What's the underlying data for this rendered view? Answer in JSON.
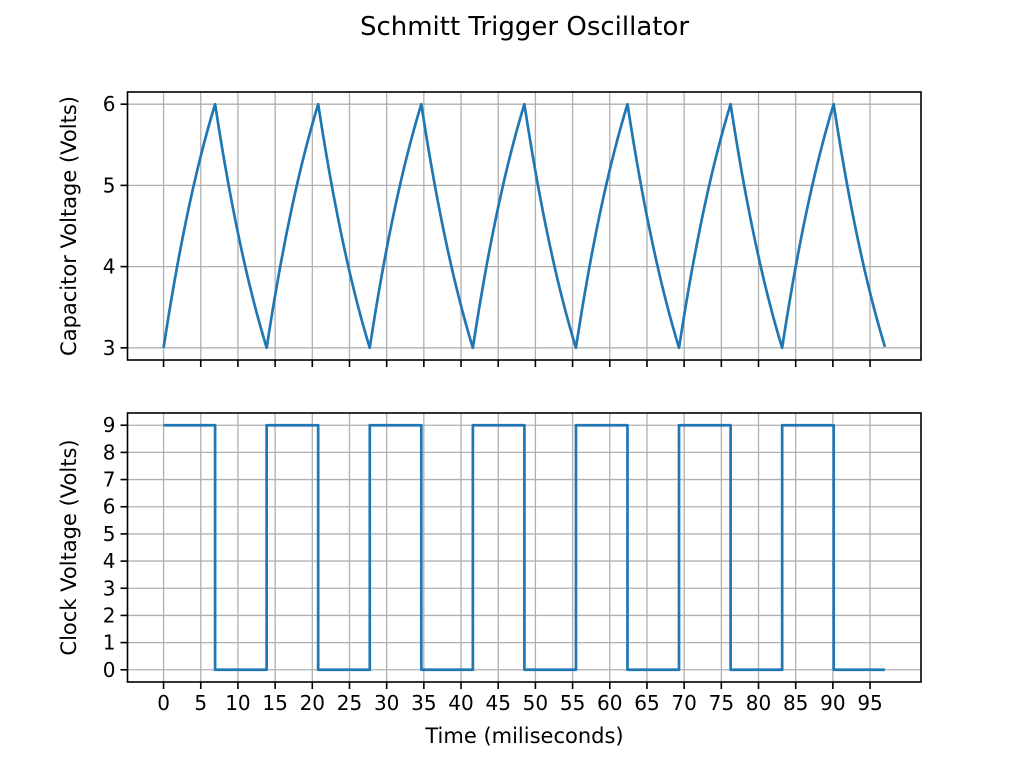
{
  "figure": {
    "title": "Schmitt Trigger Oscillator",
    "background_color": "#ffffff",
    "text_color": "#000000"
  },
  "x_axis": {
    "label": "Time (miliseconds)"
  },
  "style": {
    "line_color": "#1f77b4",
    "grid_color": "#b0b0b0",
    "spine_color": "#000000"
  },
  "chart_data": [
    {
      "type": "line",
      "name": "capacitor-voltage",
      "ylabel": "Capacitor Voltage (Volts)",
      "line_color": "#1f77b4",
      "grid": true,
      "legend": null,
      "xlim": [
        -4.85,
        101.85
      ],
      "ylim": [
        2.85,
        6.15
      ],
      "xticks": [
        0,
        5,
        10,
        15,
        20,
        25,
        30,
        35,
        40,
        45,
        50,
        55,
        60,
        65,
        70,
        75,
        80,
        85,
        90,
        95
      ],
      "show_xticklabels": false,
      "yticks": [
        3,
        4,
        5,
        6
      ],
      "yticklabels": [
        "3",
        "4",
        "5",
        "6"
      ],
      "waveform": {
        "kind": "rc_exponential_triangle",
        "description": "RC charge toward supply from lower to upper threshold, then RC discharge toward 0",
        "supply_volts": 9,
        "lower_threshold_volts": 3,
        "upper_threshold_volts": 6,
        "rc_ms": 10,
        "half_period_ms": 6.9315,
        "t_start_ms": 0,
        "t_end_ms": 97,
        "vertices": [
          [
            0,
            3
          ],
          [
            6.93,
            6
          ],
          [
            13.86,
            3
          ],
          [
            20.79,
            6
          ],
          [
            27.73,
            3
          ],
          [
            34.66,
            6
          ],
          [
            41.59,
            3
          ],
          [
            48.52,
            6
          ],
          [
            55.45,
            3
          ],
          [
            62.38,
            6
          ],
          [
            69.31,
            3
          ],
          [
            76.25,
            6
          ],
          [
            83.18,
            3
          ],
          [
            90.11,
            6
          ],
          [
            97,
            3.01
          ]
        ]
      }
    },
    {
      "type": "line",
      "name": "clock-voltage",
      "ylabel": "Clock Voltage (Volts)",
      "line_color": "#1f77b4",
      "grid": true,
      "legend": null,
      "xlim": [
        -4.85,
        101.85
      ],
      "ylim": [
        -0.45,
        9.45
      ],
      "xticks": [
        0,
        5,
        10,
        15,
        20,
        25,
        30,
        35,
        40,
        45,
        50,
        55,
        60,
        65,
        70,
        75,
        80,
        85,
        90,
        95
      ],
      "show_xticklabels": true,
      "xticklabels": [
        "0",
        "5",
        "10",
        "15",
        "20",
        "25",
        "30",
        "35",
        "40",
        "45",
        "50",
        "55",
        "60",
        "65",
        "70",
        "75",
        "80",
        "85",
        "90",
        "95"
      ],
      "yticks": [
        0,
        1,
        2,
        3,
        4,
        5,
        6,
        7,
        8,
        9
      ],
      "yticklabels": [
        "0",
        "1",
        "2",
        "3",
        "4",
        "5",
        "6",
        "7",
        "8",
        "9"
      ],
      "waveform": {
        "kind": "square",
        "high_volts": 9,
        "low_volts": 0,
        "t_start_ms": 0,
        "t_end_ms": 97,
        "segments": [
          [
            0,
            6.93,
            9
          ],
          [
            6.93,
            13.86,
            0
          ],
          [
            13.86,
            20.79,
            9
          ],
          [
            20.79,
            27.73,
            0
          ],
          [
            27.73,
            34.66,
            9
          ],
          [
            34.66,
            41.59,
            0
          ],
          [
            41.59,
            48.52,
            9
          ],
          [
            48.52,
            55.45,
            0
          ],
          [
            55.45,
            62.38,
            9
          ],
          [
            62.38,
            69.31,
            0
          ],
          [
            69.31,
            76.25,
            9
          ],
          [
            76.25,
            83.18,
            0
          ],
          [
            83.18,
            90.11,
            9
          ],
          [
            90.11,
            97,
            0
          ]
        ]
      }
    }
  ]
}
